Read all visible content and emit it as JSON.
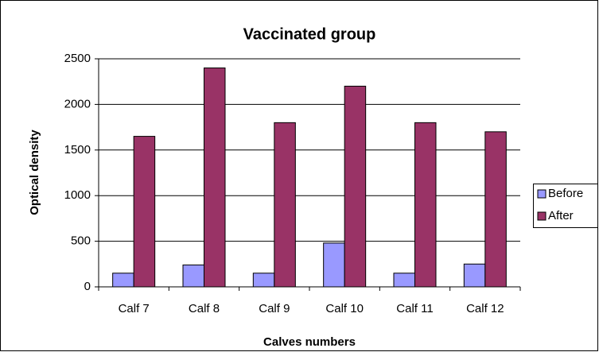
{
  "chart_data": {
    "type": "bar",
    "title": "Vaccinated group",
    "x_label": "Calves numbers",
    "y_label": "Optical density",
    "categories": [
      "Calf 7",
      "Calf 8",
      "Calf 9",
      "Calf 10",
      "Calf 11",
      "Calf 12"
    ],
    "series": [
      {
        "name": "Before",
        "color": "#9999ff",
        "values": [
          150,
          240,
          150,
          480,
          150,
          250
        ]
      },
      {
        "name": "After",
        "color": "#993366",
        "values": [
          1650,
          2400,
          1800,
          2200,
          1800,
          1700
        ]
      }
    ],
    "ylim": [
      0,
      2500
    ],
    "yticks": [
      0,
      500,
      1000,
      1500,
      2000,
      2500
    ],
    "grid": true,
    "legend": "right"
  }
}
